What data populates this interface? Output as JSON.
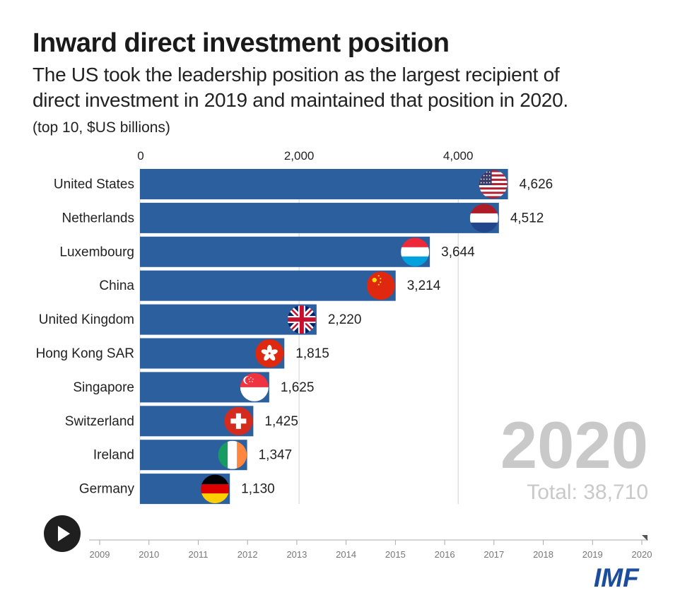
{
  "title": "Inward direct investment position",
  "subtitle_line1": "The US took the leadership position as the largest recipient of",
  "subtitle_line2": "direct investment in 2019 and maintained that position in 2020.",
  "units": "(top 10, $US billions)",
  "year_display": "2020",
  "total_display": "Total: 38,710",
  "logo": "IMF",
  "play_button": "play-icon",
  "colors": {
    "bar": "#2c5f9e",
    "grid": "#d0d0d0",
    "year_text": "#c9c9c9",
    "logo": "#1c4d9c"
  },
  "chart_data": {
    "type": "bar",
    "orientation": "horizontal",
    "categories": [
      "United States",
      "Netherlands",
      "Luxembourg",
      "China",
      "United Kingdom",
      "Hong Kong SAR",
      "Singapore",
      "Switzerland",
      "Ireland",
      "Germany"
    ],
    "values": [
      4626,
      4512,
      3644,
      3214,
      2220,
      1815,
      1625,
      1425,
      1347,
      1130
    ],
    "value_labels": [
      "4,626",
      "4,512",
      "3,644",
      "3,214",
      "2,220",
      "1,815",
      "1,625",
      "1,425",
      "1,347",
      "1,130"
    ],
    "flags": [
      "us-flag-icon",
      "netherlands-flag-icon",
      "luxembourg-flag-icon",
      "china-flag-icon",
      "uk-flag-icon",
      "hong-kong-flag-icon",
      "singapore-flag-icon",
      "switzerland-flag-icon",
      "ireland-flag-icon",
      "germany-flag-icon"
    ],
    "x_ticks": [
      0,
      2000,
      4000
    ],
    "x_tick_labels": [
      "0",
      "2,000",
      "4,000"
    ],
    "xlim": [
      0,
      4626
    ],
    "grid": true,
    "timeline": {
      "years": [
        "2009",
        "2010",
        "2011",
        "2012",
        "2013",
        "2014",
        "2015",
        "2016",
        "2017",
        "2018",
        "2019",
        "2020"
      ],
      "current": "2020"
    }
  }
}
